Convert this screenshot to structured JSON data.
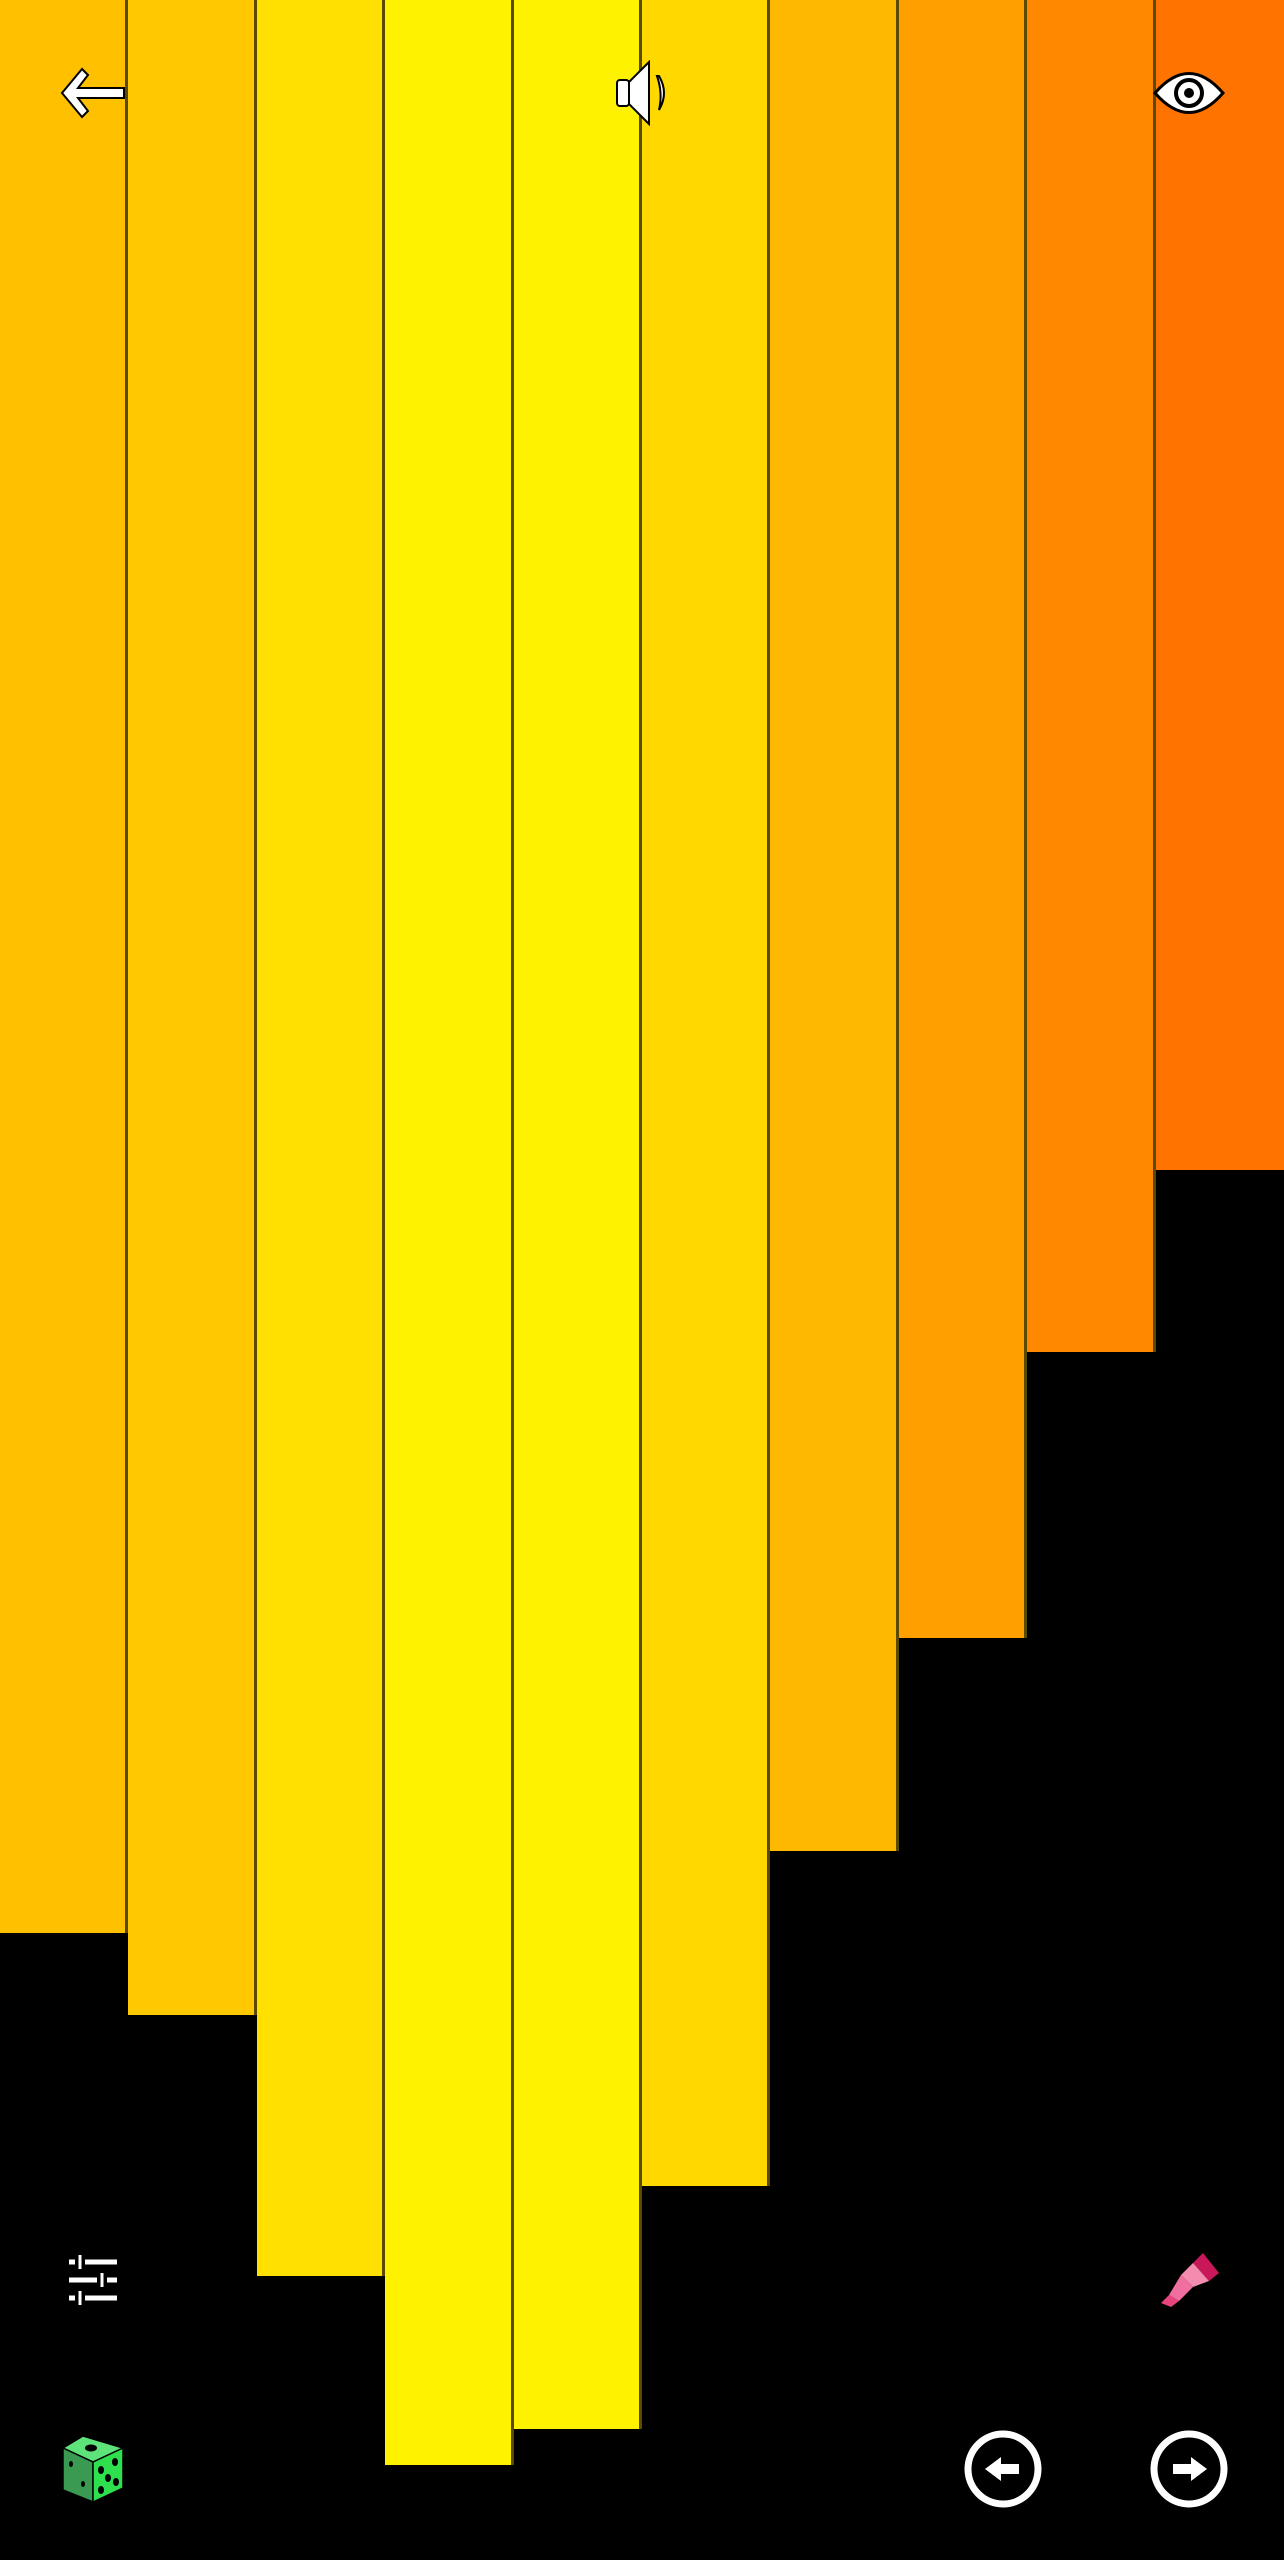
{
  "bars": [
    {
      "color": "#FFC000",
      "level": 0.755
    },
    {
      "color": "#FFC800",
      "level": 0.787
    },
    {
      "color": "#FFE000",
      "level": 0.889
    },
    {
      "color": "#FFF200",
      "level": 0.963
    },
    {
      "color": "#FFF200",
      "level": 0.949
    },
    {
      "color": "#FFD800",
      "level": 0.854
    },
    {
      "color": "#FFB800",
      "level": 0.723
    },
    {
      "color": "#FFA000",
      "level": 0.64
    },
    {
      "color": "#FF8800",
      "level": 0.528
    },
    {
      "color": "#FF7300",
      "level": 0.457
    }
  ],
  "icons": {
    "top_left": "back-arrow-icon",
    "top_center": "speaker-icon",
    "top_right": "eye-icon",
    "mid_left": "sliders-icon",
    "mid_right": "pencil-icon",
    "bottom_left": "dice-icon",
    "bottom_prev": "circle-arrow-left-icon",
    "bottom_next": "circle-arrow-right-icon"
  },
  "colors": {
    "background": "#000000",
    "divider": "#5a4a00",
    "dice": "#3ddc55",
    "pencil": "#e8457e"
  }
}
